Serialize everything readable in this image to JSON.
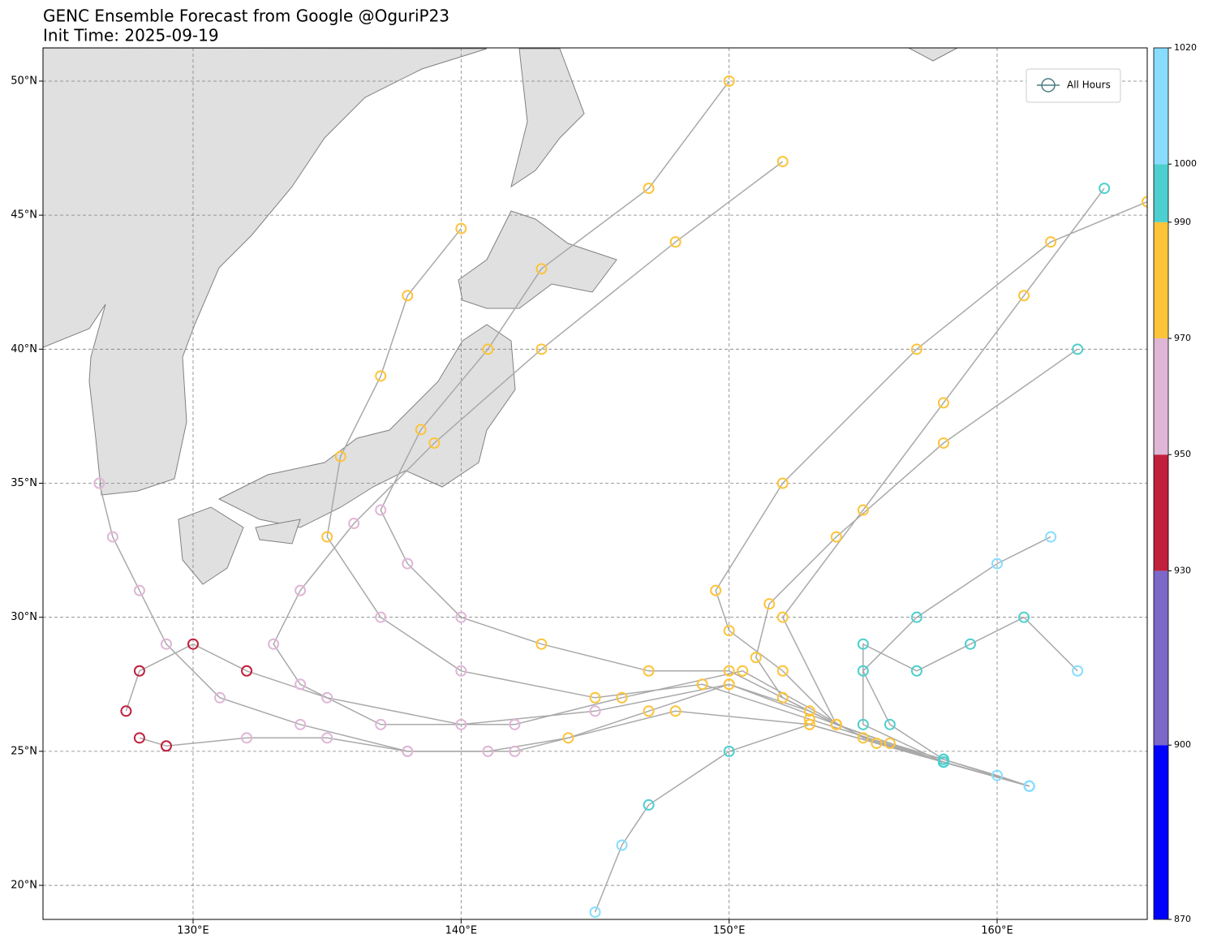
{
  "chart_data": {
    "type": "track-map",
    "title": "GENC Ensemble Forecast from Google @OguriP23",
    "subtitle": "Init Time: 2025-09-19",
    "xlim": [
      124.4,
      165.6
    ],
    "ylim": [
      18.73,
      51.24
    ],
    "xticks": [
      {
        "value": 130,
        "label": "130°E"
      },
      {
        "value": 140,
        "label": "140°E"
      },
      {
        "value": 150,
        "label": "150°E"
      },
      {
        "value": 160,
        "label": "160°E"
      }
    ],
    "yticks": [
      {
        "value": 20,
        "label": "20°N"
      },
      {
        "value": 25,
        "label": "25°N"
      },
      {
        "value": 30,
        "label": "30°N"
      },
      {
        "value": 35,
        "label": "35°N"
      },
      {
        "value": 40,
        "label": "40°N"
      },
      {
        "value": 45,
        "label": "45°N"
      },
      {
        "value": 50,
        "label": "50°N"
      }
    ],
    "grid": true,
    "track_color": "#a9a9a9",
    "legend": {
      "label": "All Hours",
      "position": "upper right"
    },
    "colorbar": {
      "lim": [
        870,
        1020
      ],
      "ticks": [
        870,
        900,
        930,
        950,
        970,
        990,
        1000,
        1020
      ],
      "bands": [
        {
          "from": 870,
          "to": 900,
          "color": "#0000ff"
        },
        {
          "from": 900,
          "to": 930,
          "color": "#7b68c8"
        },
        {
          "from": 930,
          "to": 950,
          "color": "#c0203c"
        },
        {
          "from": 950,
          "to": 970,
          "color": "#dfb6d6"
        },
        {
          "from": 970,
          "to": 990,
          "color": "#fdc43a"
        },
        {
          "from": 990,
          "to": 1000,
          "color": "#4ecfcf"
        },
        {
          "from": 1000,
          "to": 1020,
          "color": "#88ddff"
        }
      ]
    },
    "tracks": [
      {
        "lon": [
          161.2,
          160,
          158,
          156,
          154,
          152,
          151,
          151.5,
          154,
          158,
          163
        ],
        "lat": [
          23.7,
          24.1,
          24.7,
          25.3,
          26,
          27,
          28.5,
          30.5,
          33,
          36.5,
          40
        ],
        "pressure": [
          1005,
          1004,
          998,
          985,
          980,
          978,
          975,
          975,
          980,
          985,
          990
        ]
      },
      {
        "lon": [
          161.2,
          158,
          155.5,
          153,
          150,
          147,
          144,
          141,
          138,
          135,
          132,
          129,
          128
        ],
        "lat": [
          23.7,
          24.6,
          25.3,
          26.5,
          27.5,
          26.5,
          25.5,
          25,
          25,
          25.5,
          25.5,
          25.2,
          25.5
        ],
        "pressure": [
          1005,
          998,
          985,
          980,
          975,
          972,
          970,
          968,
          962,
          958,
          955,
          945,
          942
        ]
      },
      {
        "lon": [
          161.2,
          158,
          155,
          150.5,
          146,
          142,
          137,
          134,
          133,
          134,
          136,
          139,
          143,
          148,
          152
        ],
        "lat": [
          23.7,
          24.6,
          25.5,
          28,
          27,
          26,
          26,
          27.5,
          29,
          31,
          33.5,
          36.5,
          40,
          44,
          47
        ],
        "pressure": [
          1005,
          998,
          985,
          975,
          970,
          965,
          958,
          955,
          955,
          960,
          965,
          970,
          975,
          980,
          985
        ]
      },
      {
        "lon": [
          161.2,
          158,
          154,
          150,
          145,
          140,
          135,
          132,
          130,
          128,
          127.5
        ],
        "lat": [
          23.7,
          24.6,
          26,
          27.5,
          26.5,
          26,
          27,
          28,
          29,
          28,
          26.5
        ],
        "pressure": [
          1005,
          998,
          982,
          975,
          965,
          955,
          950,
          942,
          938,
          940,
          942
        ]
      },
      {
        "lon": [
          161.2,
          158,
          154,
          152,
          150,
          149.5,
          152,
          157,
          162,
          165.6
        ],
        "lat": [
          23.7,
          24.6,
          26,
          28,
          29.5,
          31,
          35,
          40,
          44,
          45.5
        ],
        "pressure": [
          1005,
          998,
          982,
          980,
          978,
          975,
          975,
          980,
          985,
          988
        ]
      },
      {
        "lon": [
          161.2,
          158,
          156,
          155,
          157,
          160,
          162
        ],
        "lat": [
          23.7,
          24.7,
          26,
          28,
          30,
          32,
          33
        ],
        "pressure": [
          1005,
          998,
          995,
          995,
          997,
          1000,
          1002
        ]
      },
      {
        "lon": [
          161.2,
          158,
          153,
          150,
          147,
          146,
          145
        ],
        "lat": [
          23.7,
          24.6,
          26,
          25,
          23,
          21.5,
          19
        ],
        "pressure": [
          1005,
          998,
          985,
          990,
          995,
          1000,
          1005
        ]
      },
      {
        "lon": [
          161.2,
          158,
          154,
          150,
          147,
          143,
          140,
          138,
          137,
          138.5,
          141,
          143,
          147,
          150
        ],
        "lat": [
          23.7,
          24.6,
          26,
          28,
          28,
          29,
          30,
          32,
          34,
          37,
          40,
          43,
          46,
          50
        ],
        "pressure": [
          1005,
          998,
          985,
          978,
          975,
          970,
          965,
          965,
          968,
          972,
          975,
          980,
          985,
          988
        ]
      },
      {
        "lon": [
          161.2,
          158,
          153,
          148,
          142,
          138,
          134,
          131,
          129,
          128,
          127,
          126.5
        ],
        "lat": [
          23.7,
          24.6,
          26,
          26.5,
          25,
          25,
          26,
          27,
          29,
          31,
          33,
          35
        ],
        "pressure": [
          1005,
          998,
          982,
          972,
          968,
          962,
          958,
          958,
          960,
          962,
          965,
          968
        ]
      },
      {
        "lon": [
          161.2,
          158,
          153,
          149,
          145,
          140,
          137,
          135,
          135.5,
          137,
          138,
          140
        ],
        "lat": [
          23.7,
          24.6,
          26.2,
          27.5,
          27,
          28,
          30,
          33,
          36,
          39,
          42,
          44.5
        ],
        "pressure": [
          1005,
          998,
          982,
          976,
          970,
          968,
          968,
          970,
          975,
          978,
          980,
          985
        ]
      },
      {
        "lon": [
          161.2,
          158,
          154,
          152,
          155,
          158,
          161,
          164
        ],
        "lat": [
          23.7,
          24.6,
          26,
          30,
          34,
          38,
          42,
          46
        ],
        "pressure": [
          1005,
          998,
          982,
          978,
          980,
          985,
          988,
          990
        ]
      },
      {
        "lon": [
          161.2,
          158,
          155,
          155,
          157,
          159,
          161,
          163
        ],
        "lat": [
          23.7,
          24.6,
          26,
          29,
          28,
          29,
          30,
          28
        ],
        "pressure": [
          1005,
          998,
          992,
          995,
          995,
          996,
          998,
          1000
        ]
      }
    ]
  }
}
